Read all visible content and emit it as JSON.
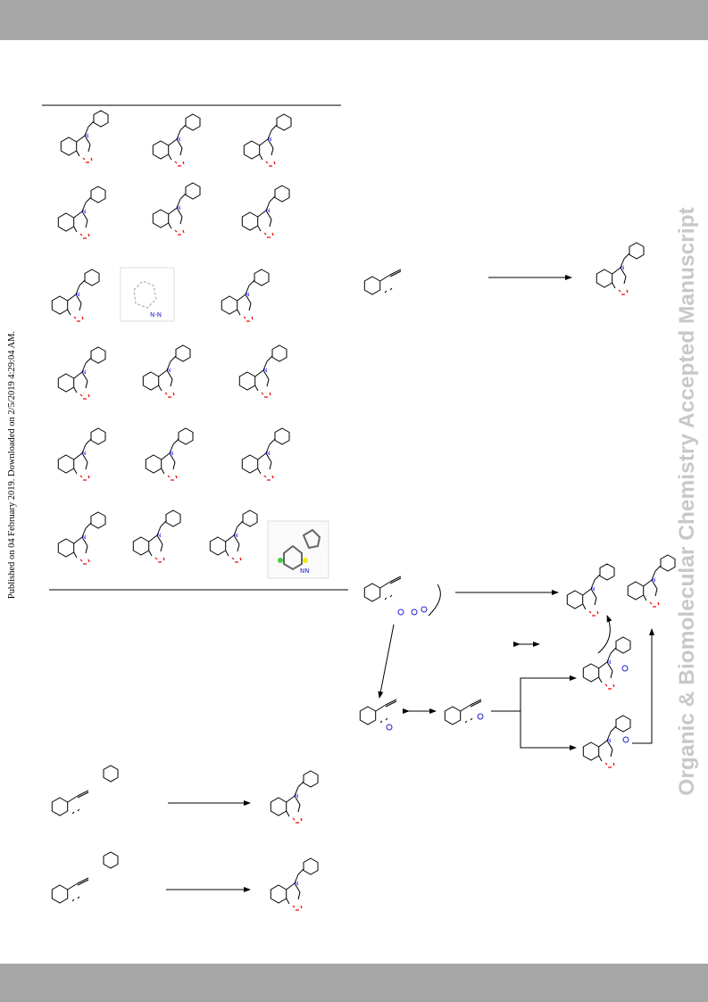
{
  "watermark": "Organic & Biomolecular Chemistry Accepted Manuscript",
  "published_note": "Published on 04 February 2019. Downloaded on 2/5/2019 4:29:04 AM."
}
